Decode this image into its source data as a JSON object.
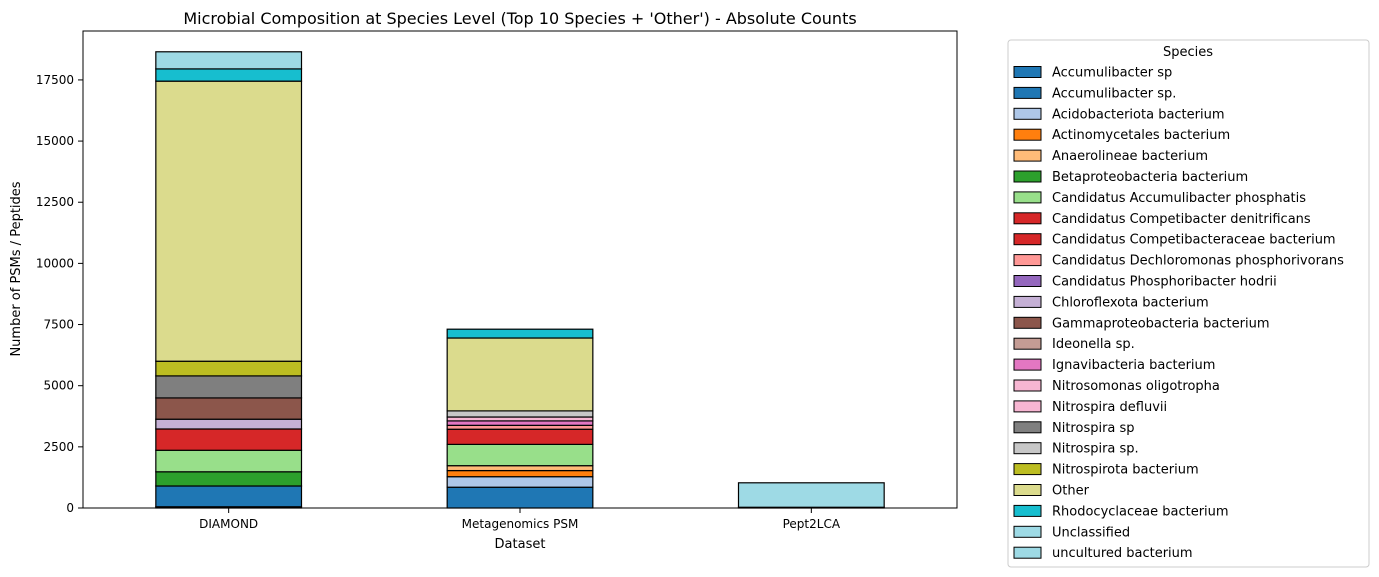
{
  "chart_data": {
    "type": "bar",
    "stacked": true,
    "title": "Microbial Composition at Species Level (Top 10 Species + 'Other') - Absolute Counts",
    "xlabel": "Dataset",
    "ylabel": "Number of PSMs / Peptides",
    "ylim": [
      0,
      19500
    ],
    "yticks": [
      0,
      2500,
      5000,
      7500,
      10000,
      12500,
      15000,
      17500
    ],
    "categories": [
      "DIAMOND",
      "Metagenomics PSM",
      "Pept2LCA"
    ],
    "legend_title": "Species",
    "legend_position": "outside-right",
    "grid": false,
    "series": [
      {
        "name": "Accumulibacter sp",
        "color": "#1f77b4",
        "values": [
          50,
          0,
          30
        ]
      },
      {
        "name": "Accumulibacter sp.",
        "color": "#1f77b4",
        "values": [
          850,
          850,
          0
        ]
      },
      {
        "name": "Acidobacteriota bacterium",
        "color": "#aec7e8",
        "values": [
          0,
          430,
          0
        ]
      },
      {
        "name": "Actinomycetales bacterium",
        "color": "#ff7f0e",
        "values": [
          0,
          250,
          0
        ]
      },
      {
        "name": "Anaerolineae bacterium",
        "color": "#ffbb78",
        "values": [
          0,
          200,
          0
        ]
      },
      {
        "name": "Betaproteobacteria bacterium",
        "color": "#2ca02c",
        "values": [
          580,
          0,
          0
        ]
      },
      {
        "name": "Candidatus Accumulibacter phosphatis",
        "color": "#98df8a",
        "values": [
          880,
          870,
          0
        ]
      },
      {
        "name": "Candidatus Competibacter denitrificans",
        "color": "#d62728",
        "values": [
          870,
          0,
          0
        ]
      },
      {
        "name": "Candidatus Competibacteraceae bacterium",
        "color": "#d62728",
        "values": [
          0,
          620,
          0
        ]
      },
      {
        "name": "Candidatus Dechloromonas phosphorivorans",
        "color": "#ff9896",
        "values": [
          0,
          160,
          0
        ]
      },
      {
        "name": "Candidatus Phosphoribacter hodrii",
        "color": "#9467bd",
        "values": [
          0,
          0,
          0
        ]
      },
      {
        "name": "Chloroflexota bacterium",
        "color": "#c5b0d5",
        "values": [
          400,
          0,
          0
        ]
      },
      {
        "name": "Gammaproteobacteria bacterium",
        "color": "#8c564b",
        "values": [
          870,
          0,
          0
        ]
      },
      {
        "name": "Ideonella sp.",
        "color": "#c49c94",
        "values": [
          0,
          0,
          0
        ]
      },
      {
        "name": "Ignavibacteria bacterium",
        "color": "#e377c2",
        "values": [
          0,
          180,
          0
        ]
      },
      {
        "name": "Nitrosomonas oligotropha",
        "color": "#f7b6d2",
        "values": [
          0,
          0,
          0
        ]
      },
      {
        "name": "Nitrospira defluvii",
        "color": "#f7b6d2",
        "values": [
          0,
          160,
          0
        ]
      },
      {
        "name": "Nitrospira sp",
        "color": "#7f7f7f",
        "values": [
          900,
          0,
          0
        ]
      },
      {
        "name": "Nitrospira sp.",
        "color": "#c7c7c7",
        "values": [
          0,
          250,
          0
        ]
      },
      {
        "name": "Nitrospirota bacterium",
        "color": "#bcbd22",
        "values": [
          600,
          0,
          0
        ]
      },
      {
        "name": "Other",
        "color": "#dbdb8d",
        "values": [
          11450,
          2980,
          0
        ]
      },
      {
        "name": "Rhodocyclaceae bacterium",
        "color": "#17becf",
        "values": [
          500,
          360,
          0
        ]
      },
      {
        "name": "Unclassified",
        "color": "#9edae5",
        "values": [
          0,
          0,
          1000
        ]
      },
      {
        "name": "uncultured bacterium",
        "color": "#9edae5",
        "values": [
          700,
          0,
          0
        ]
      }
    ]
  }
}
